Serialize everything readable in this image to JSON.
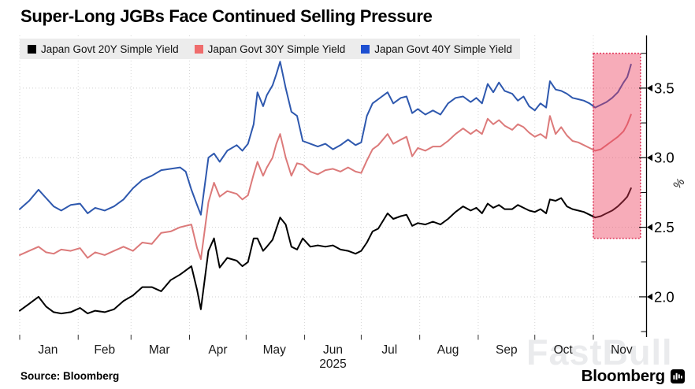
{
  "title": "Super-Long JGBs Face Continued Selling Pressure",
  "source": "Source: Bloomberg",
  "watermark": "FastBull",
  "brand": {
    "name": "Bloomberg"
  },
  "chart_data": {
    "type": "line",
    "title": "Super-Long JGBs Face Continued Selling Pressure",
    "legend_position": "top-left",
    "grid": true,
    "x_axis": {
      "unit": "day-of-year-2025",
      "tick_labels": [
        "Jan",
        "Feb",
        "Mar",
        "Apr",
        "May",
        "Jun",
        "Jul",
        "Aug",
        "Sep",
        "Oct",
        "Nov"
      ],
      "year_label": "2025",
      "year_label_month_index": 5,
      "month_start_days": [
        0,
        31,
        59,
        90,
        120,
        151,
        181,
        212,
        243,
        273,
        304
      ],
      "month_mid_days": [
        15,
        45,
        74,
        105,
        135,
        166,
        196,
        227,
        258,
        288,
        319
      ],
      "xlim_days": [
        0,
        332
      ]
    },
    "y_axis": {
      "side": "right",
      "unit_label": "%",
      "ticks": [
        2.0,
        2.5,
        3.0,
        3.5
      ],
      "tick_labels": [
        "2.0",
        "2.5",
        "3.0",
        "3.5"
      ],
      "minor_ticks": [
        1.75,
        2.25,
        2.75,
        3.25,
        3.75
      ],
      "ylim": [
        1.728,
        3.822
      ]
    },
    "days": [
      0,
      5,
      10,
      14,
      18,
      22,
      27,
      32,
      36,
      40,
      45,
      50,
      55,
      60,
      65,
      70,
      75,
      80,
      85,
      88,
      91,
      94,
      96,
      100,
      103,
      106,
      110,
      115,
      118,
      121,
      124,
      126,
      129,
      131,
      134,
      136,
      138,
      141,
      144,
      147,
      150,
      154,
      158,
      162,
      166,
      170,
      174,
      178,
      181,
      184,
      187,
      190,
      195,
      198,
      202,
      205,
      208,
      211,
      215,
      219,
      223,
      227,
      231,
      235,
      239,
      242,
      245,
      248,
      251,
      254,
      257,
      261,
      264,
      267,
      270,
      273,
      276,
      279,
      281,
      284,
      287,
      290,
      293,
      296,
      299,
      302,
      305,
      308,
      311,
      314,
      317,
      320,
      322,
      324
    ],
    "series": [
      {
        "key": "20y",
        "name": "Japan Govt 20Y Simple Yield",
        "line_color": "#000000",
        "swatch_color": "#000000",
        "values": [
          1.9,
          1.95,
          2.0,
          1.93,
          1.89,
          1.88,
          1.89,
          1.92,
          1.88,
          1.9,
          1.89,
          1.91,
          1.97,
          2.01,
          2.07,
          2.07,
          2.04,
          2.12,
          2.16,
          2.19,
          2.22,
          2.05,
          1.91,
          2.33,
          2.42,
          2.21,
          2.28,
          2.26,
          2.22,
          2.25,
          2.42,
          2.42,
          2.33,
          2.36,
          2.41,
          2.49,
          2.57,
          2.52,
          2.36,
          2.34,
          2.42,
          2.36,
          2.37,
          2.36,
          2.37,
          2.34,
          2.33,
          2.31,
          2.33,
          2.39,
          2.47,
          2.49,
          2.6,
          2.56,
          2.58,
          2.59,
          2.51,
          2.53,
          2.52,
          2.54,
          2.52,
          2.56,
          2.61,
          2.65,
          2.62,
          2.64,
          2.6,
          2.67,
          2.64,
          2.66,
          2.63,
          2.63,
          2.66,
          2.64,
          2.62,
          2.61,
          2.63,
          2.6,
          2.7,
          2.69,
          2.71,
          2.65,
          2.63,
          2.62,
          2.61,
          2.59,
          2.57,
          2.58,
          2.6,
          2.62,
          2.65,
          2.69,
          2.72,
          2.78
        ]
      },
      {
        "key": "30y",
        "name": "Japan Govt 30Y Simple Yield",
        "line_color": "#dc7a7a",
        "swatch_color": "#ef6c6c",
        "values": [
          2.3,
          2.33,
          2.36,
          2.32,
          2.31,
          2.34,
          2.33,
          2.35,
          2.28,
          2.32,
          2.3,
          2.33,
          2.36,
          2.33,
          2.39,
          2.38,
          2.46,
          2.47,
          2.5,
          2.51,
          2.52,
          2.35,
          2.27,
          2.68,
          2.82,
          2.72,
          2.76,
          2.74,
          2.7,
          2.73,
          2.88,
          2.97,
          2.87,
          2.93,
          3.0,
          3.1,
          3.17,
          3.0,
          2.87,
          2.96,
          2.95,
          2.9,
          2.88,
          2.91,
          2.92,
          2.9,
          2.93,
          2.9,
          2.89,
          2.98,
          3.06,
          3.09,
          3.17,
          3.1,
          3.13,
          3.15,
          3.01,
          3.07,
          3.05,
          3.08,
          3.08,
          3.12,
          3.17,
          3.21,
          3.17,
          3.2,
          3.17,
          3.28,
          3.24,
          3.27,
          3.23,
          3.2,
          3.24,
          3.22,
          3.18,
          3.15,
          3.17,
          3.14,
          3.3,
          3.17,
          3.22,
          3.16,
          3.12,
          3.11,
          3.09,
          3.07,
          3.05,
          3.06,
          3.09,
          3.12,
          3.15,
          3.19,
          3.24,
          3.31
        ]
      },
      {
        "key": "40y",
        "name": "Japan Govt 40Y Simple Yield",
        "line_color": "#2e58ae",
        "swatch_color": "#1d4fd1",
        "values": [
          2.63,
          2.69,
          2.77,
          2.71,
          2.65,
          2.62,
          2.66,
          2.67,
          2.6,
          2.64,
          2.62,
          2.65,
          2.7,
          2.78,
          2.84,
          2.87,
          2.91,
          2.92,
          2.93,
          2.9,
          2.77,
          2.66,
          2.59,
          3.0,
          3.03,
          2.97,
          3.05,
          3.09,
          3.05,
          3.1,
          3.24,
          3.47,
          3.37,
          3.45,
          3.52,
          3.6,
          3.69,
          3.5,
          3.33,
          3.3,
          3.12,
          3.1,
          3.08,
          3.1,
          3.06,
          3.09,
          3.13,
          3.09,
          3.11,
          3.3,
          3.39,
          3.42,
          3.47,
          3.39,
          3.43,
          3.44,
          3.32,
          3.35,
          3.31,
          3.34,
          3.31,
          3.39,
          3.43,
          3.44,
          3.4,
          3.43,
          3.39,
          3.53,
          3.47,
          3.54,
          3.48,
          3.46,
          3.41,
          3.44,
          3.37,
          3.34,
          3.39,
          3.36,
          3.55,
          3.49,
          3.48,
          3.46,
          3.43,
          3.42,
          3.41,
          3.39,
          3.36,
          3.38,
          3.4,
          3.43,
          3.47,
          3.54,
          3.58,
          3.67
        ]
      }
    ],
    "highlight_region": {
      "day_start": 304,
      "day_end": 329,
      "value_top": 3.75,
      "value_bottom": 2.42,
      "fill": "rgba(236,58,89,0.42)",
      "border": "#e23b5e"
    }
  }
}
